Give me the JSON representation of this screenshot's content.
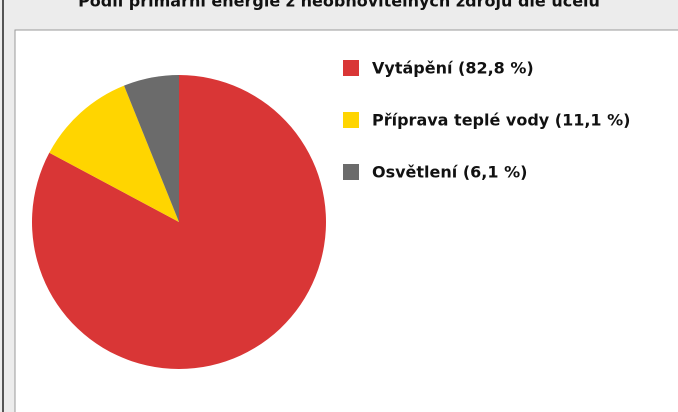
{
  "chart_data": {
    "type": "pie",
    "title": "Podíl primární energie z neobnovitelných zdrojů dle účelu",
    "categories": [
      "Vytápění (82,8 %)",
      "Příprava teplé vody (11,1 %)",
      "Osvětlení (6,1 %)"
    ],
    "values": [
      82.8,
      11.1,
      6.1
    ],
    "colors": [
      "#d93636",
      "#ffd500",
      "#6b6b6b"
    ],
    "legend": "right"
  }
}
